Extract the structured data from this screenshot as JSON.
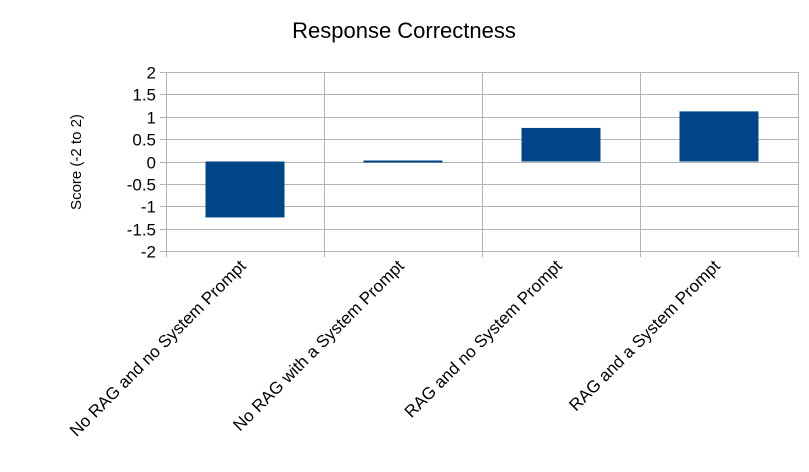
{
  "chart_data": {
    "type": "bar",
    "title": "Response Correctness",
    "xlabel": "",
    "ylabel": "Score (-2 to 2)",
    "categories": [
      "No RAG and no System Prompt",
      "No RAG with a System Prompt",
      "RAG and no System Prompt",
      "RAG and a System Prompt"
    ],
    "values": [
      -1.25,
      0.0,
      0.75,
      1.12
    ],
    "ylim": [
      -2,
      2
    ],
    "yticks": [
      2,
      1.5,
      1,
      0.5,
      0,
      -0.5,
      -1,
      -1.5,
      -2
    ],
    "ytick_labels": [
      "2",
      "1.5",
      "1",
      "0.5",
      "0",
      "-0.5",
      "-1",
      "-1.5",
      "-2"
    ],
    "grid": true,
    "legend": "none",
    "bar_color": "#004586",
    "grid_color": "#b3b3b3"
  }
}
